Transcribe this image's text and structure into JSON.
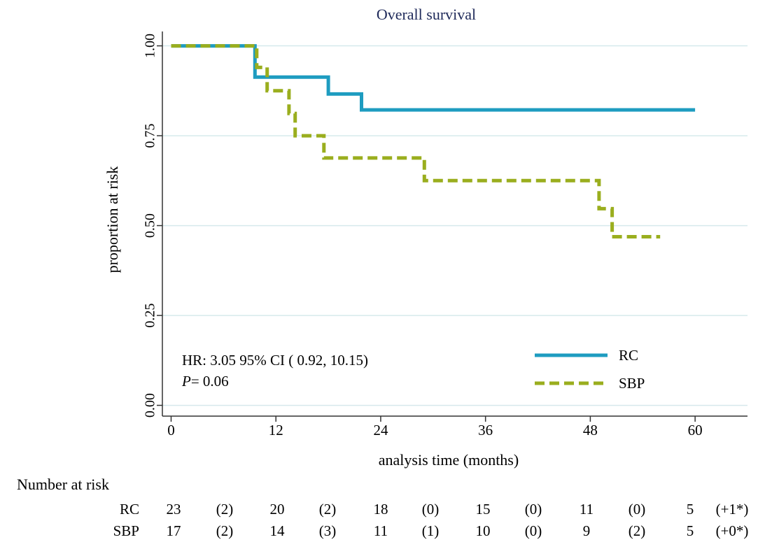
{
  "chart_data": {
    "type": "line",
    "step": true,
    "title": "Overall survival",
    "xlabel": "analysis time (months)",
    "ylabel": "proportion at risk",
    "xlim": [
      -1,
      66
    ],
    "ylim": [
      -0.03,
      1.04
    ],
    "xticks": [
      0,
      12,
      24,
      36,
      48,
      60
    ],
    "yticks": [
      0.0,
      0.25,
      0.5,
      0.75,
      1.0
    ],
    "ytick_labels": [
      "0.00",
      "0.25",
      "0.50",
      "0.75",
      "1.00"
    ],
    "grid": "horizontal",
    "legend_position": "bottom-right",
    "series": [
      {
        "name": "RC",
        "color": "#1e9cc0",
        "dash": "solid",
        "x": [
          0,
          9.6,
          9.6,
          18,
          18,
          21.8,
          21.8,
          60
        ],
        "y": [
          1.0,
          1.0,
          0.913,
          0.913,
          0.866,
          0.866,
          0.822,
          0.822
        ]
      },
      {
        "name": "SBP",
        "color": "#9aae1e",
        "dash": "dashed",
        "x": [
          0,
          9.8,
          9.8,
          11,
          11,
          13.5,
          13.5,
          14.2,
          14.2,
          17.5,
          17.5,
          29,
          29,
          49,
          49,
          50.5,
          50.5,
          56
        ],
        "y": [
          1.0,
          1.0,
          0.94,
          0.94,
          0.875,
          0.875,
          0.812,
          0.812,
          0.75,
          0.75,
          0.688,
          0.688,
          0.625,
          0.625,
          0.547,
          0.547,
          0.469,
          0.469
        ]
      }
    ],
    "annotation": {
      "hr_line": "HR:  3.05 95% CI ( 0.92, 10.15)",
      "p_label": "P",
      "p_value": "= 0.06"
    },
    "risk_table": {
      "title": "Number at risk",
      "rows": [
        {
          "label": "RC",
          "values": [
            "23",
            "(2)",
            "20",
            "(2)",
            "18",
            "(0)",
            "15",
            "(0)",
            "11",
            "(0)",
            "5",
            "(+1*)"
          ]
        },
        {
          "label": "SBP",
          "values": [
            "17",
            "(2)",
            "14",
            "(3)",
            "11",
            "(1)",
            "10",
            "(0)",
            "9",
            "(2)",
            "5",
            "(+0*)"
          ]
        }
      ]
    }
  }
}
